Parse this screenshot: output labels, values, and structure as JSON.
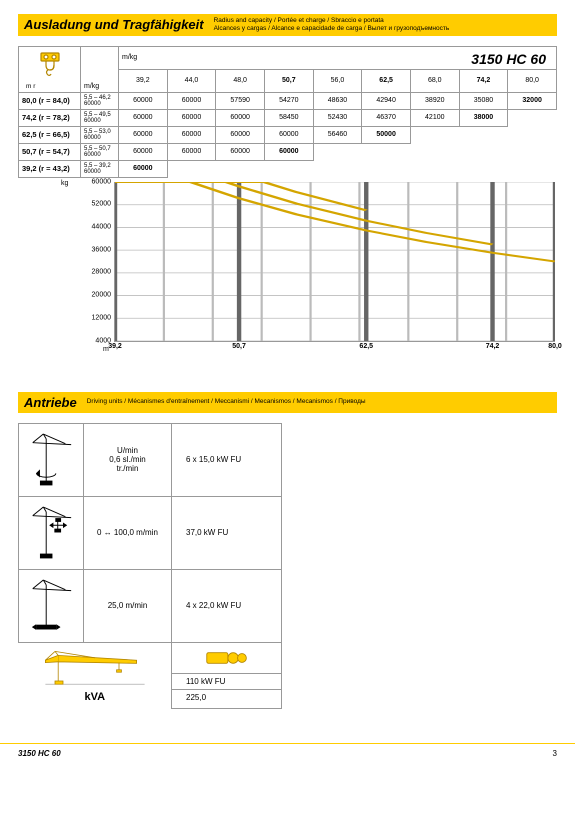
{
  "header1": {
    "title": "Ausladung und Tragfähigkeit",
    "subtitle": "Radius and capacity / Portée et charge / Sbraccio e portata\nAlcances y cargas / Alcance e capacidade de carga / Вылет и грузоподъемность"
  },
  "model": "3150 HC 60",
  "capTable": {
    "unitTop": "m/kg",
    "unitLeft": "m     r",
    "unitCol2": "m/kg",
    "cols": [
      "39,2",
      "44,0",
      "48,0",
      "50,7",
      "56,0",
      "62,5",
      "68,0",
      "74,2",
      "80,0"
    ],
    "boldCols": [
      3,
      5,
      7
    ],
    "rows": [
      {
        "lbl": "80,0  (r = 84,0)",
        "sub": "5,5 – 46,2\n60000",
        "cells": [
          "60000",
          "60000",
          "57590",
          "54270",
          "48630",
          "42940",
          "38920",
          "35080",
          "32000"
        ],
        "boldIdx": 8
      },
      {
        "lbl": "74,2  (r = 78,2)",
        "sub": "5,5 – 49,5\n60000",
        "cells": [
          "60000",
          "60000",
          "60000",
          "58450",
          "52430",
          "46370",
          "42100",
          "38000",
          ""
        ],
        "boldIdx": 7
      },
      {
        "lbl": "62,5  (r = 66,5)",
        "sub": "5,5 – 53,0\n60000",
        "cells": [
          "60000",
          "60000",
          "60000",
          "60000",
          "56460",
          "50000",
          "",
          "",
          ""
        ],
        "boldIdx": 5
      },
      {
        "lbl": "50,7  (r = 54,7)",
        "sub": "5,5 – 50,7\n60000",
        "cells": [
          "60000",
          "60000",
          "60000",
          "60000",
          "",
          "",
          "",
          "",
          ""
        ],
        "boldIdx": 3
      },
      {
        "lbl": "39,2  (r = 43,2)",
        "sub": "5,5 – 39,2\n60000",
        "cells": [
          "60000",
          "",
          "",
          "",
          "",
          "",
          "",
          "",
          ""
        ],
        "boldIdx": 0
      }
    ]
  },
  "chart": {
    "yTicks": [
      60000,
      52000,
      44000,
      36000,
      28000,
      20000,
      12000,
      4000
    ],
    "yMin": 4000,
    "yMax": 60000,
    "xTicks": [
      "39,2",
      "50,7",
      "62,5",
      "74,2",
      "80,0"
    ],
    "xTickPos": [
      0,
      28.2,
      57.1,
      85.8,
      100
    ],
    "xMin": 39.2,
    "xMax": 80,
    "curves": [
      [
        [
          39.2,
          60000
        ],
        [
          46.2,
          60000
        ],
        [
          50.7,
          54270
        ],
        [
          56,
          48630
        ],
        [
          62.5,
          42940
        ],
        [
          68,
          38920
        ],
        [
          74.2,
          35080
        ],
        [
          80,
          32000
        ]
      ],
      [
        [
          39.2,
          60000
        ],
        [
          49.5,
          60000
        ],
        [
          50.7,
          58450
        ],
        [
          56,
          52430
        ],
        [
          62.5,
          46370
        ],
        [
          68,
          42100
        ],
        [
          74.2,
          38000
        ]
      ],
      [
        [
          39.2,
          60000
        ],
        [
          53,
          60000
        ],
        [
          56,
          56460
        ],
        [
          62.5,
          50000
        ]
      ],
      [
        [
          39.2,
          60000
        ],
        [
          50.7,
          60000
        ]
      ]
    ],
    "colors": {
      "curve": "#d4a500",
      "grid": "#bbb",
      "gridMajor": "#666"
    }
  },
  "header2": {
    "title": "Antriebe",
    "subtitle": "Driving units / Mécanismes d'entraînement / Meccanismi / Mecanismos / Mecanismos / Приводы"
  },
  "drive": {
    "rows": [
      {
        "spec": "U/min\n0,6 sl./min\ntr./min",
        "val": "6 x 15,0 kW FU"
      },
      {
        "spec": "0 ↔ 100,0 m/min",
        "val": "37,0 kW FU"
      },
      {
        "spec": "25,0 m/min",
        "val": "4 x 22,0 kW FU"
      }
    ],
    "kva": {
      "label": "kVA",
      "val1": "110 kW FU",
      "val2": "225,0"
    }
  },
  "footer": {
    "model": "3150 HC 60",
    "page": "3"
  }
}
